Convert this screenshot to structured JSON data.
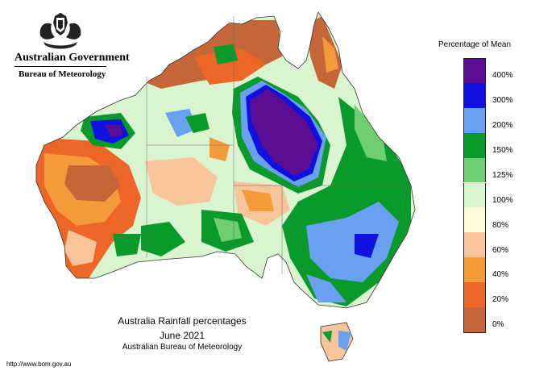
{
  "header": {
    "government": "Australian Government",
    "bureau": "Bureau of Meteorology"
  },
  "legend": {
    "title": "Percentage of Mean",
    "items": [
      {
        "label": "400%",
        "color": "#5b0e94"
      },
      {
        "label": "300%",
        "color": "#1010e0"
      },
      {
        "label": "200%",
        "color": "#6aa0f0"
      },
      {
        "label": "150%",
        "color": "#0a9a2c"
      },
      {
        "label": "125%",
        "color": "#6dcf72"
      },
      {
        "label": "100%",
        "color": "#d9f4cf"
      },
      {
        "label": "80%",
        "color": "#fefbd8"
      },
      {
        "label": "60%",
        "color": "#f8c49a"
      },
      {
        "label": "40%",
        "color": "#f59a3a"
      },
      {
        "label": "20%",
        "color": "#ee6627"
      },
      {
        "label": "0%",
        "color": "#c56638"
      }
    ]
  },
  "map_title": {
    "line1": "Australia Rainfall percentages",
    "line2": "June 2021",
    "line3": "Australian Bureau of Meteorology"
  },
  "footer": {
    "url": "http://www.bom.gov.au"
  }
}
